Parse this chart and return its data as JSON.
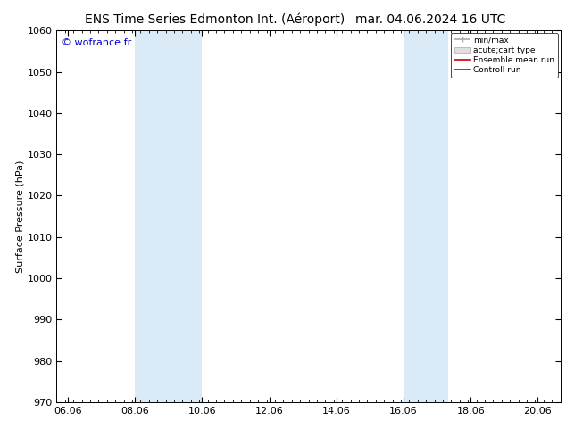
{
  "title_left": "ENS Time Series Edmonton Int. (Aéroport)",
  "title_right": "mar. 04.06.2024 16 UTC",
  "ylabel": "Surface Pressure (hPa)",
  "ylim": [
    970,
    1060
  ],
  "yticks": [
    970,
    980,
    990,
    1000,
    1010,
    1020,
    1030,
    1040,
    1050,
    1060
  ],
  "xtick_labels": [
    "06.06",
    "08.06",
    "10.06",
    "12.06",
    "14.06",
    "16.06",
    "18.06",
    "20.06"
  ],
  "blue_bands": [
    {
      "start_day": 2.33,
      "end_day": 3.33
    },
    {
      "start_day": 3.33,
      "end_day": 4.33
    },
    {
      "start_day": 10.33,
      "end_day": 11.0
    },
    {
      "start_day": 11.0,
      "end_day": 11.67
    }
  ],
  "band_color": "#daeaf7",
  "watermark": "© wofrance.fr",
  "watermark_color": "#0000cc",
  "background_color": "#ffffff",
  "legend_entries": [
    "min/max",
    "acute;cart type",
    "Ensemble mean run",
    "Controll run"
  ],
  "legend_line_colors": [
    "#aaaaaa",
    "#cccccc",
    "#cc0000",
    "#006600"
  ],
  "title_fontsize": 10,
  "axis_label_fontsize": 8,
  "tick_fontsize": 8,
  "total_days": 15.0,
  "xtick_positions": [
    0.33,
    2.33,
    4.33,
    6.33,
    8.33,
    10.33,
    12.33,
    14.33
  ]
}
